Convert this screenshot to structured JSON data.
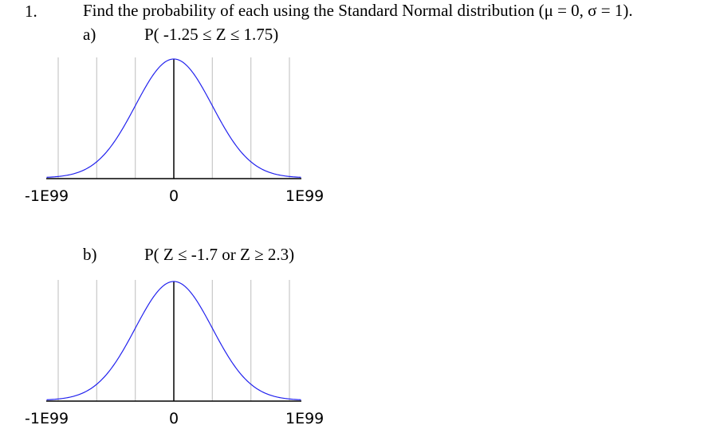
{
  "problem": {
    "number": "1.",
    "prompt": "Find the probability of each using the Standard Normal distribution (μ = 0, σ = 1)."
  },
  "parts": [
    {
      "label": "a)",
      "expression": "P( -1.25 ≤ Z ≤ 1.75)",
      "chart_data": {
        "type": "line",
        "series": [
          {
            "name": "",
            "function": "standard normal density",
            "mean": 0,
            "sd": 1,
            "color": "#2222ee"
          }
        ],
        "xlim": [
          -3,
          3
        ],
        "x_gridlines": [
          -3,
          -2,
          -1,
          0,
          1,
          2,
          3
        ],
        "tick_labels": [
          "-1E99",
          "0",
          "1E99"
        ],
        "grid": true
      }
    },
    {
      "label": "b)",
      "expression": "P( Z ≤ -1.7  or  Z ≥ 2.3)",
      "chart_data": {
        "type": "line",
        "series": [
          {
            "name": "",
            "function": "standard normal density",
            "mean": 0,
            "sd": 1,
            "color": "#2222ee"
          }
        ],
        "xlim": [
          -3,
          3
        ],
        "x_gridlines": [
          -3,
          -2,
          -1,
          0,
          1,
          2,
          3
        ],
        "tick_labels": [
          "-1E99",
          "0",
          "1E99"
        ],
        "grid": true
      }
    }
  ]
}
